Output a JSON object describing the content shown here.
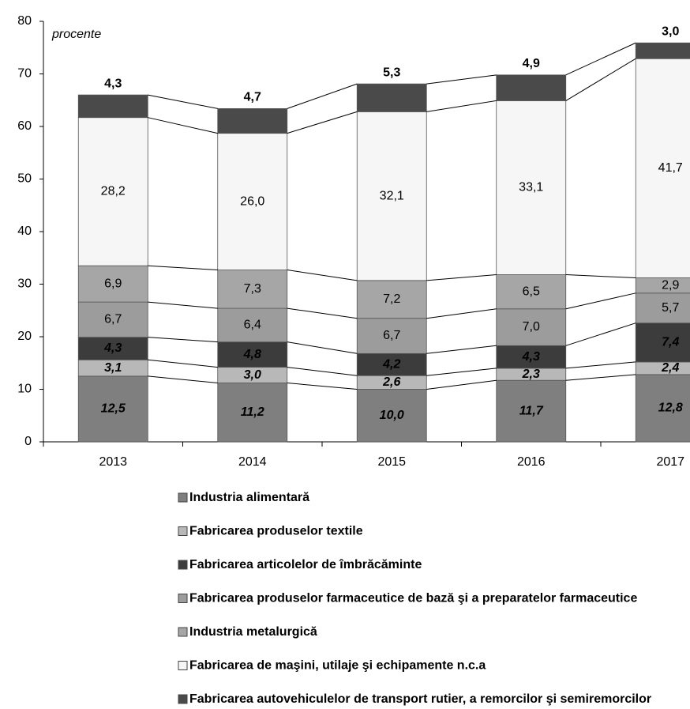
{
  "chart_data": {
    "type": "stacked_bar",
    "y_label": "procente",
    "categories": [
      "2013",
      "2014",
      "2015",
      "2016",
      "2017"
    ],
    "ylim": [
      0,
      80
    ],
    "yticks": [
      0,
      10,
      20,
      30,
      40,
      50,
      60,
      70,
      80
    ],
    "series": [
      {
        "name": "Industria alimentară",
        "color": "#7f7f7f",
        "values": [
          12.5,
          11.2,
          10.0,
          11.7,
          12.8
        ],
        "value_labels": [
          "12,5",
          "11,2",
          "10,0",
          "11,7",
          "12,8"
        ]
      },
      {
        "name": "Fabricarea produselor textile",
        "color": "#b8b8b8",
        "values": [
          3.1,
          3.0,
          2.6,
          2.3,
          2.4
        ],
        "value_labels": [
          "3,1",
          "3,0",
          "2,6",
          "2,3",
          "2,4"
        ]
      },
      {
        "name": "Fabricarea articolelor de îmbrăcăminte",
        "color": "#3c3c3c",
        "values": [
          4.3,
          4.8,
          4.2,
          4.3,
          7.4
        ],
        "value_labels": [
          "4,3",
          "4,8",
          "4,2",
          "4,3",
          "7,4"
        ]
      },
      {
        "name": "Fabricarea produselor farmaceutice de bază şi a preparatelor farmaceutice",
        "color": "#9c9c9c",
        "values": [
          6.7,
          6.4,
          6.7,
          7.0,
          5.7
        ],
        "value_labels": [
          "6,7",
          "6,4",
          "6,7",
          "7,0",
          "5,7"
        ]
      },
      {
        "name": "Industria metalurgică",
        "color": "#a6a6a6",
        "values": [
          6.9,
          7.3,
          7.2,
          6.5,
          2.9
        ],
        "value_labels": [
          "6,9",
          "7,3",
          "7,2",
          "6,5",
          "2,9"
        ]
      },
      {
        "name": "Fabricarea de maşini, utilaje şi echipamente n.c.a",
        "color": "#f6f6f6",
        "values": [
          28.2,
          26.0,
          32.1,
          33.1,
          41.7
        ],
        "value_labels": [
          "28,2",
          "26,0",
          "32,1",
          "33,1",
          "41,7"
        ]
      },
      {
        "name": "Fabricarea autovehiculelor de transport rutier, a remorcilor şi semiremorcilor",
        "color": "#4a4a4a",
        "values": [
          4.3,
          4.7,
          5.3,
          4.9,
          3.0
        ],
        "value_labels": [
          "4,3",
          "4,7",
          "5,3",
          "4,9",
          "3,0"
        ]
      }
    ]
  }
}
